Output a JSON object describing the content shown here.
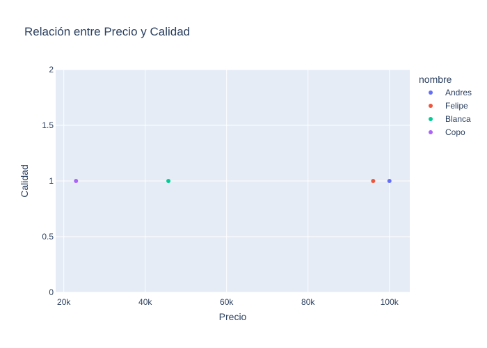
{
  "chart_data": {
    "type": "scatter",
    "title": "Relación entre Precio y Calidad",
    "xlabel": "Precio",
    "ylabel": "Calidad",
    "xlim": [
      18000,
      105000
    ],
    "ylim": [
      0,
      2
    ],
    "x_ticks": [
      20000,
      40000,
      60000,
      80000,
      100000
    ],
    "x_tick_labels": [
      "20k",
      "40k",
      "60k",
      "80k",
      "100k"
    ],
    "y_ticks": [
      0,
      0.5,
      1,
      1.5,
      2
    ],
    "y_tick_labels": [
      "0",
      "0.5",
      "1",
      "1.5",
      "2"
    ],
    "grid": true,
    "legend_title": "nombre",
    "legend_position": "right",
    "series": [
      {
        "name": "Andres",
        "color": "#636efa",
        "x": [
          100000
        ],
        "y": [
          1
        ]
      },
      {
        "name": "Felipe",
        "color": "#ef553b",
        "x": [
          96000
        ],
        "y": [
          1
        ]
      },
      {
        "name": "Blanca",
        "color": "#00cc96",
        "x": [
          45700
        ],
        "y": [
          1
        ]
      },
      {
        "name": "Copo",
        "color": "#ab63fa",
        "x": [
          23000
        ],
        "y": [
          1
        ]
      }
    ],
    "plot_bg": "#e5ecf6",
    "grid_color": "#ffffff",
    "text_color": "#2a3f5f"
  }
}
